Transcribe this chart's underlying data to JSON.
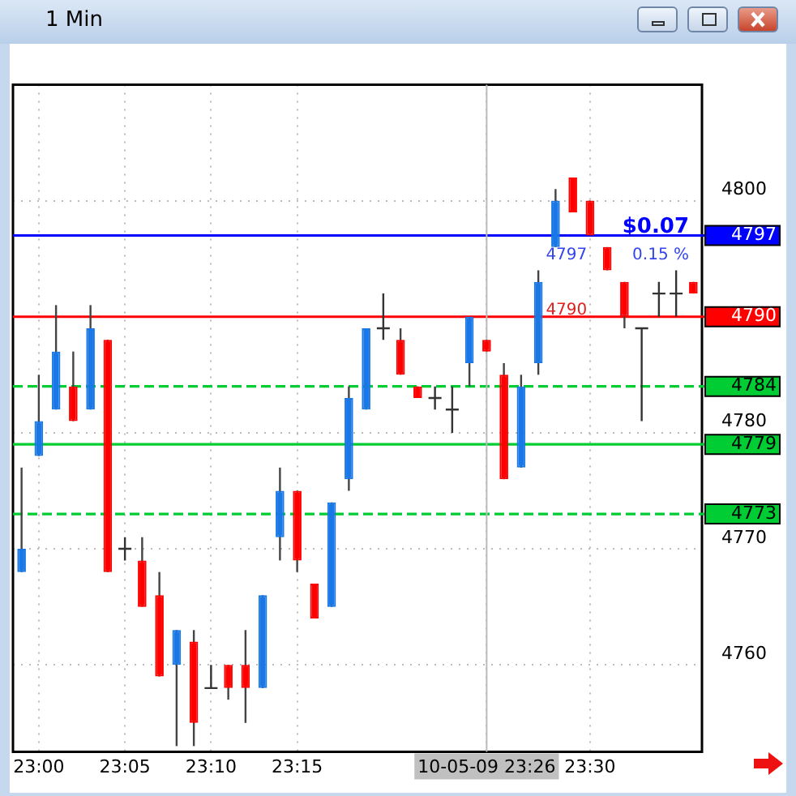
{
  "chart_data": {
    "type": "candlestick",
    "title": "1 Min",
    "categories": [
      null,
      "23:00",
      null,
      null,
      null,
      null,
      "23:05",
      null,
      null,
      null,
      null,
      "23:10",
      null,
      null,
      null,
      null,
      "23:15",
      null,
      null,
      null,
      null,
      null,
      null,
      null,
      null,
      null,
      null,
      "10-05-09 23:26",
      null,
      null,
      null,
      null,
      null,
      "23:30",
      null,
      null,
      null,
      null,
      null,
      null
    ],
    "ohlc": [
      [
        4768,
        4777,
        4768,
        4770
      ],
      [
        4778,
        4785,
        4778,
        4781
      ],
      [
        4782,
        4791,
        4782,
        4787
      ],
      [
        4784,
        4787,
        4781,
        4781
      ],
      [
        4782,
        4791,
        4782,
        4789
      ],
      [
        4788,
        4788,
        4768,
        4768
      ],
      [
        4770,
        4771,
        4769,
        4770
      ],
      [
        4769,
        4771,
        4765,
        4765
      ],
      [
        4766,
        4768,
        4759,
        4759
      ],
      [
        4760,
        4763,
        4753,
        4763
      ],
      [
        4762,
        4763,
        4753,
        4755
      ],
      [
        4758,
        4760,
        4758,
        4758
      ],
      [
        4760,
        4760,
        4757,
        4758
      ],
      [
        4760,
        4763,
        4755,
        4758
      ],
      [
        4758,
        4766,
        4758,
        4766
      ],
      [
        4771,
        4777,
        4769,
        4775
      ],
      [
        4775,
        4775,
        4768,
        4769
      ],
      [
        4767,
        4767,
        4764,
        4764
      ],
      [
        4765,
        4774,
        4765,
        4774
      ],
      [
        4776,
        4784,
        4775,
        4783
      ],
      [
        4782,
        4789,
        4782,
        4789
      ],
      [
        4789,
        4792,
        4788,
        4789
      ],
      [
        4788,
        4789,
        4785,
        4785
      ],
      [
        4784,
        4784,
        4783,
        4783
      ],
      [
        4783,
        4784,
        4782,
        4783
      ],
      [
        4782,
        4784,
        4780,
        4782
      ],
      [
        4786,
        4790,
        4784,
        4790
      ],
      [
        4788,
        4788,
        4787,
        4787
      ],
      [
        4785,
        4786,
        4776,
        4776
      ],
      [
        4777,
        4785,
        4777,
        4784
      ],
      [
        4786,
        4794,
        4785,
        4793
      ],
      [
        4796,
        4801,
        4796,
        4800
      ],
      [
        4802,
        4802,
        4799,
        4799
      ],
      [
        4800,
        4800,
        4797,
        4797
      ],
      [
        4796,
        4796,
        4794,
        4794
      ],
      [
        4793,
        4793,
        4789,
        4790
      ],
      [
        4789,
        4789,
        4781,
        4789
      ],
      [
        4792,
        4793,
        4790,
        4792
      ],
      [
        4792,
        4794,
        4790,
        4792
      ],
      [
        4793,
        4793,
        4792,
        4792
      ]
    ],
    "colors": [
      "#1a78e6",
      "#1a78e6",
      "#1a78e6",
      "#ff0000",
      "#1a78e6",
      "#ff0000",
      "#333333",
      "#ff0000",
      "#ff0000",
      "#1a78e6",
      "#ff0000",
      "#333333",
      "#ff0000",
      "#ff0000",
      "#1a78e6",
      "#1a78e6",
      "#ff0000",
      "#ff0000",
      "#1a78e6",
      "#1a78e6",
      "#1a78e6",
      "#333333",
      "#ff0000",
      "#ff0000",
      "#333333",
      "#333333",
      "#1a78e6",
      "#ff0000",
      "#ff0000",
      "#1a78e6",
      "#1a78e6",
      "#1a78e6",
      "#ff0000",
      "#ff0000",
      "#ff0000",
      "#ff0000",
      "#333333",
      "#333333",
      "#333333",
      "#ff0000"
    ],
    "ylim": [
      4752.5,
      4810
    ],
    "yticks": [
      4760,
      4770,
      4780,
      4800
    ],
    "grid": true,
    "ref_lines": [
      {
        "axis": "y",
        "value": 4797,
        "label": "4797",
        "color": "#0000ff",
        "line_style": "solid"
      },
      {
        "axis": "y",
        "value": 4790,
        "label": "4790",
        "color": "#ff0000",
        "line_style": "solid"
      },
      {
        "axis": "y",
        "value": 4784,
        "label": "4784",
        "color": "#00cc33",
        "line_style": "dashed"
      },
      {
        "axis": "y",
        "value": 4779,
        "label": "4779",
        "color": "#00cc33",
        "line_style": "solid"
      },
      {
        "axis": "y",
        "value": 4773,
        "label": "4773",
        "color": "#00cc33",
        "line_style": "dashed"
      },
      {
        "axis": "x",
        "value": "10-05-09 23:26",
        "color": "#bbbbbb",
        "line_style": "solid"
      }
    ],
    "annotations": [
      {
        "text": "$0.07",
        "y": 4797
      },
      {
        "text": "0.15 %",
        "y": 4797
      },
      {
        "text": "4797",
        "y": 4797
      },
      {
        "text": "4790",
        "y": 4790
      }
    ]
  }
}
